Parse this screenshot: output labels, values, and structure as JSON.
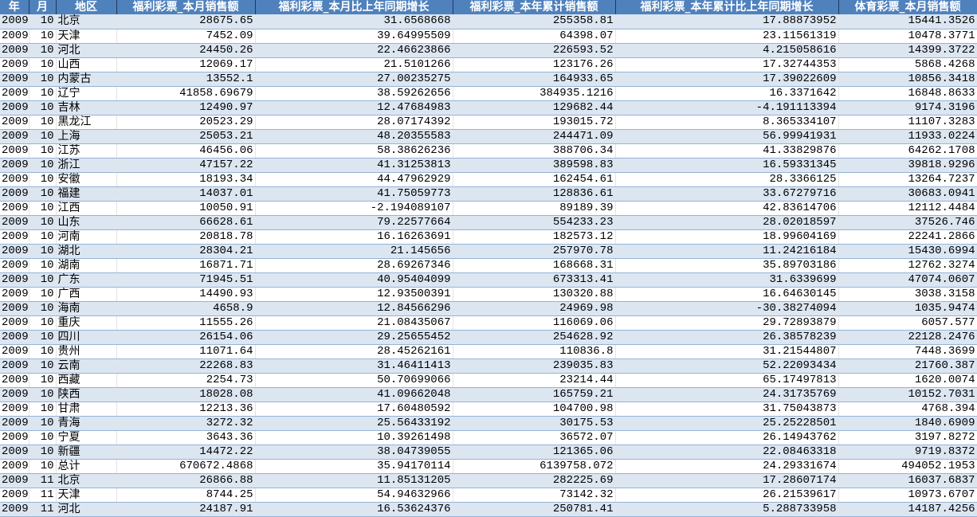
{
  "colors": {
    "header_bg": "#4f81bd",
    "header_text": "#ffffff",
    "band_row": "#dce6f1",
    "row_border": "#95b3d7"
  },
  "headers": [
    "年",
    "月",
    "地区",
    "福利彩票_本月销售额",
    "福利彩票_本月比上年同期增长",
    "福利彩票_本年累计销售额",
    "福利彩票_本年累计比上年同期增长",
    "体育彩票_本月销售额"
  ],
  "rows": [
    [
      "2009",
      "10",
      "北京",
      "28675.65",
      "31.6568668",
      "255358.81",
      "17.88873952",
      "15441.3526"
    ],
    [
      "2009",
      "10",
      "天津",
      "7452.09",
      "39.64995509",
      "64398.07",
      "23.11561319",
      "10478.3771"
    ],
    [
      "2009",
      "10",
      "河北",
      "24450.26",
      "22.46623866",
      "226593.52",
      "4.215058616",
      "14399.3722"
    ],
    [
      "2009",
      "10",
      "山西",
      "12069.17",
      "21.5101266",
      "123176.26",
      "17.32744353",
      "5868.4268"
    ],
    [
      "2009",
      "10",
      "内蒙古",
      "13552.1",
      "27.00235275",
      "164933.65",
      "17.39022609",
      "10856.3418"
    ],
    [
      "2009",
      "10",
      "辽宁",
      "41858.69679",
      "38.59262656",
      "384935.1216",
      "16.3371642",
      "16848.8633"
    ],
    [
      "2009",
      "10",
      "吉林",
      "12490.97",
      "12.47684983",
      "129682.44",
      "-4.191113394",
      "9174.3196"
    ],
    [
      "2009",
      "10",
      "黑龙江",
      "20523.29",
      "28.07174392",
      "193015.72",
      "8.365334107",
      "11107.3283"
    ],
    [
      "2009",
      "10",
      "上海",
      "25053.21",
      "48.20355583",
      "244471.09",
      "56.99941931",
      "11933.0224"
    ],
    [
      "2009",
      "10",
      "江苏",
      "46456.06",
      "58.38626236",
      "388706.34",
      "41.33829876",
      "64262.1708"
    ],
    [
      "2009",
      "10",
      "浙江",
      "47157.22",
      "41.31253813",
      "389598.83",
      "16.59331345",
      "39818.9296"
    ],
    [
      "2009",
      "10",
      "安徽",
      "18193.34",
      "44.47962929",
      "162454.61",
      "28.3366125",
      "13264.7237"
    ],
    [
      "2009",
      "10",
      "福建",
      "14037.01",
      "41.75059773",
      "128836.61",
      "33.67279716",
      "30683.0941"
    ],
    [
      "2009",
      "10",
      "江西",
      "10050.91",
      "-2.194089107",
      "89189.39",
      "42.83614706",
      "12112.4484"
    ],
    [
      "2009",
      "10",
      "山东",
      "66628.61",
      "79.22577664",
      "554233.23",
      "28.02018597",
      "37526.746"
    ],
    [
      "2009",
      "10",
      "河南",
      "20818.78",
      "16.16263691",
      "182573.12",
      "18.99604169",
      "22241.2866"
    ],
    [
      "2009",
      "10",
      "湖北",
      "28304.21",
      "21.145656",
      "257970.78",
      "11.24216184",
      "15430.6994"
    ],
    [
      "2009",
      "10",
      "湖南",
      "16871.71",
      "28.69267346",
      "168668.31",
      "35.89703186",
      "12762.3274"
    ],
    [
      "2009",
      "10",
      "广东",
      "71945.51",
      "40.95404099",
      "673313.41",
      "31.6339699",
      "47074.0607"
    ],
    [
      "2009",
      "10",
      "广西",
      "14490.93",
      "12.93500391",
      "130320.88",
      "16.64630145",
      "3038.3158"
    ],
    [
      "2009",
      "10",
      "海南",
      "4658.9",
      "12.84566296",
      "24969.98",
      "-30.38274094",
      "1035.9474"
    ],
    [
      "2009",
      "10",
      "重庆",
      "11555.26",
      "21.08435067",
      "116069.06",
      "29.72893879",
      "6057.577"
    ],
    [
      "2009",
      "10",
      "四川",
      "26154.06",
      "29.25655452",
      "254628.92",
      "26.38578239",
      "22128.2476"
    ],
    [
      "2009",
      "10",
      "贵州",
      "11071.64",
      "28.45262161",
      "110836.8",
      "31.21544807",
      "7448.3699"
    ],
    [
      "2009",
      "10",
      "云南",
      "22268.83",
      "31.46411413",
      "239035.83",
      "52.22093434",
      "21760.387"
    ],
    [
      "2009",
      "10",
      "西藏",
      "2254.73",
      "50.70699066",
      "23214.44",
      "65.17497813",
      "1620.0074"
    ],
    [
      "2009",
      "10",
      "陕西",
      "18028.08",
      "41.09662048",
      "165759.21",
      "24.31735769",
      "10152.7031"
    ],
    [
      "2009",
      "10",
      "甘肃",
      "12213.36",
      "17.60480592",
      "104700.98",
      "31.75043873",
      "4768.394"
    ],
    [
      "2009",
      "10",
      "青海",
      "3272.32",
      "25.56433192",
      "30175.53",
      "25.25228501",
      "1840.6909"
    ],
    [
      "2009",
      "10",
      "宁夏",
      "3643.36",
      "10.39261498",
      "36572.07",
      "26.14943762",
      "3197.8272"
    ],
    [
      "2009",
      "10",
      "新疆",
      "14472.22",
      "38.04739055",
      "121365.06",
      "22.08463318",
      "9719.8372"
    ],
    [
      "2009",
      "10",
      "总计",
      "670672.4868",
      "35.94170114",
      "6139758.072",
      "24.29331674",
      "494052.1953"
    ],
    [
      "2009",
      "11",
      "北京",
      "26866.88",
      "11.85131205",
      "282225.69",
      "17.28607174",
      "16037.6837"
    ],
    [
      "2009",
      "11",
      "天津",
      "8744.25",
      "54.94632966",
      "73142.32",
      "26.21539617",
      "10973.6707"
    ],
    [
      "2009",
      "11",
      "河北",
      "24187.91",
      "16.53624376",
      "250781.41",
      "5.288733958",
      "14187.4256"
    ]
  ]
}
